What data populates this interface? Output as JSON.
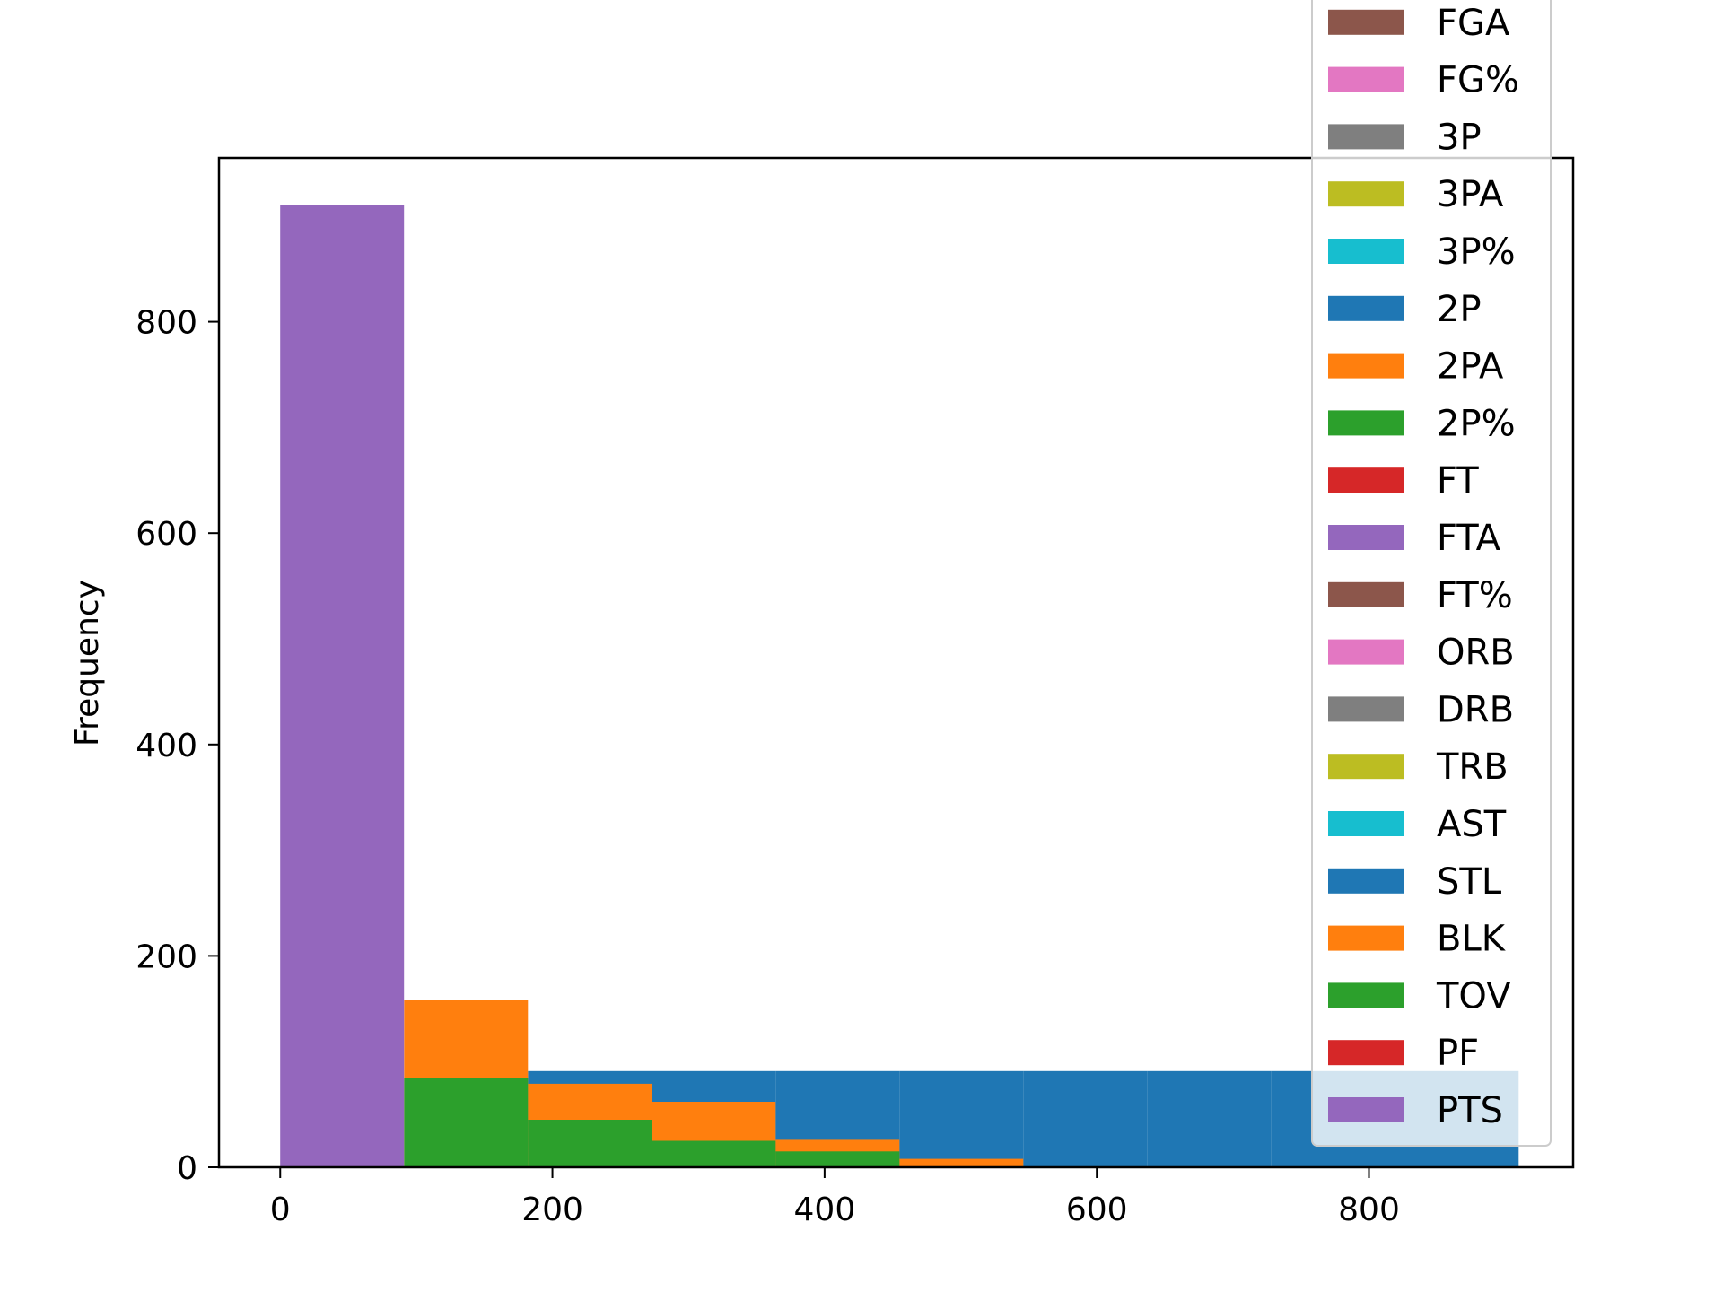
{
  "chart_data": {
    "type": "histogram",
    "title": "",
    "xlabel": "",
    "ylabel": "Frequency",
    "xlim": [
      -45,
      950
    ],
    "ylim": [
      0,
      955
    ],
    "xticks": [
      0,
      200,
      400,
      600,
      800
    ],
    "yticks": [
      0,
      200,
      400,
      600,
      800
    ],
    "bin_edges": [
      0,
      91,
      182,
      273,
      364,
      455,
      546,
      637,
      728,
      819,
      910
    ],
    "stacked": false,
    "grid": false,
    "legend_position": "upper right, extending above plot area",
    "series": [
      {
        "name": "FGA",
        "color": "#8c564b",
        "counts": [
          0,
          0,
          0,
          0,
          0,
          0,
          0,
          0,
          0,
          0
        ]
      },
      {
        "name": "FG%",
        "color": "#e377c2",
        "counts": [
          0,
          0,
          0,
          0,
          0,
          0,
          0,
          0,
          0,
          0
        ]
      },
      {
        "name": "3P",
        "color": "#7f7f7f",
        "counts": [
          0,
          0,
          0,
          0,
          0,
          0,
          0,
          0,
          0,
          0
        ]
      },
      {
        "name": "3PA",
        "color": "#bcbd22",
        "counts": [
          0,
          0,
          0,
          0,
          0,
          0,
          0,
          0,
          0,
          0
        ]
      },
      {
        "name": "3P%",
        "color": "#17becf",
        "counts": [
          0,
          0,
          0,
          0,
          0,
          0,
          0,
          0,
          0,
          0
        ]
      },
      {
        "name": "2P",
        "color": "#1f77b4",
        "counts": [
          0,
          0,
          91,
          91,
          91,
          91,
          91,
          91,
          91,
          91
        ]
      },
      {
        "name": "2PA",
        "color": "#ff7f0e",
        "counts": [
          0,
          158,
          79,
          62,
          26,
          8,
          0,
          0,
          0,
          0
        ]
      },
      {
        "name": "2P%",
        "color": "#2ca02c",
        "counts": [
          0,
          84,
          45,
          25,
          15,
          0,
          0,
          0,
          0,
          0
        ]
      },
      {
        "name": "FT",
        "color": "#d62728",
        "counts": [
          0,
          0,
          0,
          0,
          0,
          0,
          0,
          0,
          0,
          0
        ]
      },
      {
        "name": "FTA",
        "color": "#9467bd",
        "counts": [
          0,
          0,
          0,
          0,
          0,
          0,
          0,
          0,
          0,
          0
        ]
      },
      {
        "name": "FT%",
        "color": "#8c564b",
        "counts": [
          0,
          0,
          0,
          0,
          0,
          0,
          0,
          0,
          0,
          0
        ]
      },
      {
        "name": "ORB",
        "color": "#e377c2",
        "counts": [
          0,
          0,
          0,
          0,
          0,
          0,
          0,
          0,
          0,
          0
        ]
      },
      {
        "name": "DRB",
        "color": "#7f7f7f",
        "counts": [
          0,
          0,
          0,
          0,
          0,
          0,
          0,
          0,
          0,
          0
        ]
      },
      {
        "name": "TRB",
        "color": "#bcbd22",
        "counts": [
          0,
          0,
          0,
          0,
          0,
          0,
          0,
          0,
          0,
          0
        ]
      },
      {
        "name": "AST",
        "color": "#17becf",
        "counts": [
          0,
          0,
          0,
          0,
          0,
          0,
          0,
          0,
          0,
          0
        ]
      },
      {
        "name": "STL",
        "color": "#1f77b4",
        "counts": [
          0,
          0,
          0,
          0,
          0,
          0,
          0,
          0,
          0,
          0
        ]
      },
      {
        "name": "BLK",
        "color": "#ff7f0e",
        "counts": [
          0,
          0,
          0,
          0,
          0,
          0,
          0,
          0,
          0,
          0
        ]
      },
      {
        "name": "TOV",
        "color": "#2ca02c",
        "counts": [
          0,
          0,
          0,
          0,
          0,
          0,
          0,
          0,
          0,
          0
        ]
      },
      {
        "name": "PF",
        "color": "#d62728",
        "counts": [
          0,
          0,
          0,
          0,
          0,
          0,
          0,
          0,
          0,
          0
        ]
      },
      {
        "name": "PTS",
        "color": "#9467bd",
        "counts": [
          910,
          0,
          0,
          0,
          0,
          0,
          0,
          0,
          0,
          0
        ]
      }
    ]
  }
}
